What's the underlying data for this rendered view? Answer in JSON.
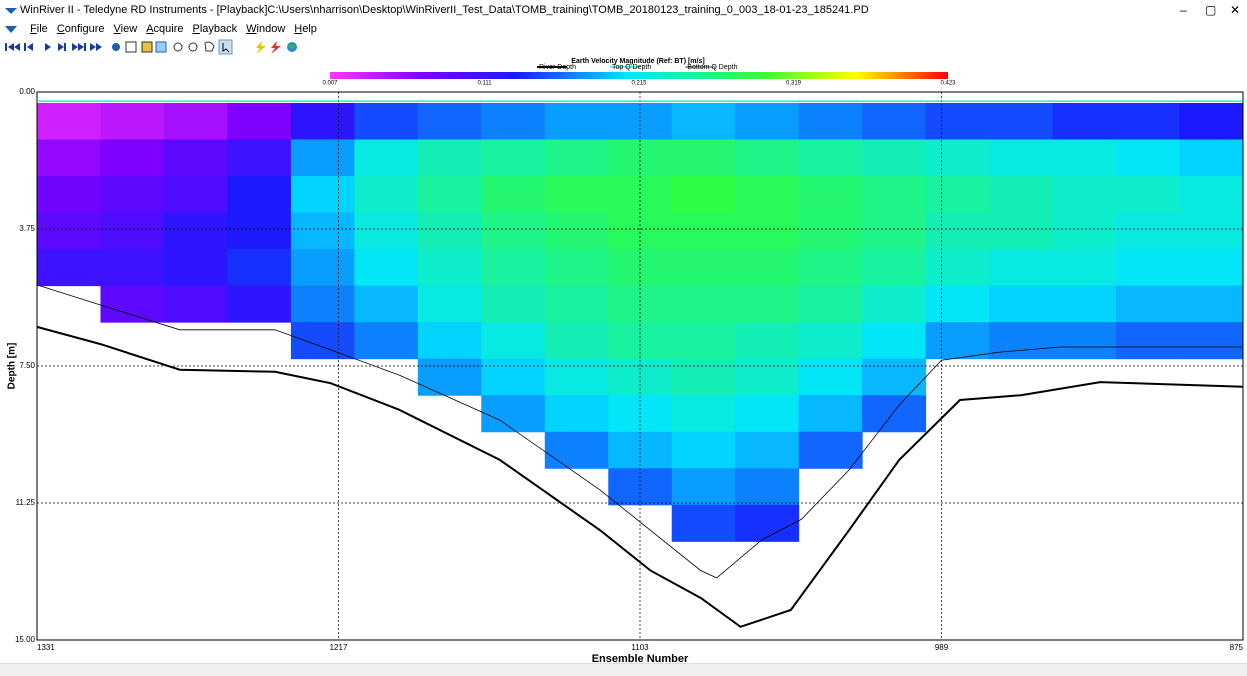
{
  "window": {
    "title": "WinRiver II - Teledyne RD Instruments - [Playback]C:\\Users\\nharrison\\Desktop\\WinRiverII_Test_Data\\TOMB_training\\TOMB_20180123_training_0_003_18-01-23_185241.PD",
    "controls": [
      "–",
      "▢",
      "✕"
    ]
  },
  "menu": [
    "File",
    "Configure",
    "View",
    "Acquire",
    "Playback",
    "Window",
    "Help"
  ],
  "chart_data": {
    "type": "heatmap",
    "title": "Earth Velocity Magnitude (Ref: BT) [m/s]",
    "x_label": "Ensemble Number",
    "y_label": "Depth [m]",
    "xlim": [
      1331,
      875
    ],
    "xticks": [
      1331,
      1217,
      1103,
      989,
      875
    ],
    "ylim": [
      0,
      15
    ],
    "yticks": [
      {
        "value": 0,
        "label": "0.00"
      },
      3.75,
      {
        "value": 7.5,
        "label": "7.50"
      },
      11.25,
      {
        "value": 15,
        "label": "15.00"
      }
    ],
    "grid": true,
    "clim": [
      0.007,
      0.423
    ],
    "cticks": [
      0.007,
      0.111,
      0.215,
      0.319,
      0.423
    ],
    "heatmap": {
      "ensemble_bins": [
        1331,
        1307,
        1283,
        1259,
        1235,
        1211,
        1187,
        1163,
        1139,
        1115,
        1091,
        1067,
        1043,
        1019,
        995,
        971,
        947,
        923,
        899,
        875
      ],
      "depth_bins": [
        0.3,
        1.3,
        2.3,
        3.3,
        4.3,
        5.3,
        6.3,
        7.3,
        8.3,
        9.3,
        10.3,
        11.3,
        12.3,
        13.3
      ],
      "values": [
        [
          0.03,
          0.06,
          0.08,
          0.09,
          0.11,
          null,
          null,
          null,
          null,
          null,
          null,
          null,
          null
        ],
        [
          0.04,
          0.07,
          0.09,
          0.1,
          0.11,
          0.09,
          null,
          null,
          null,
          null,
          null,
          null,
          null
        ],
        [
          0.05,
          0.09,
          0.1,
          0.12,
          0.12,
          0.1,
          null,
          null,
          null,
          null,
          null,
          null,
          null
        ],
        [
          0.07,
          0.11,
          0.13,
          0.13,
          0.14,
          0.12,
          null,
          null,
          null,
          null,
          null,
          null,
          null
        ],
        [
          0.12,
          0.18,
          0.2,
          0.19,
          0.18,
          0.17,
          0.15,
          null,
          null,
          null,
          null,
          null,
          null
        ],
        [
          0.15,
          0.22,
          0.23,
          0.22,
          0.21,
          0.19,
          0.17,
          null,
          null,
          null,
          null,
          null,
          null
        ],
        [
          0.16,
          0.24,
          0.25,
          0.24,
          0.23,
          0.22,
          0.2,
          0.18,
          null,
          null,
          null,
          null,
          null
        ],
        [
          0.17,
          0.25,
          0.27,
          0.26,
          0.25,
          0.24,
          0.22,
          0.2,
          0.18,
          null,
          null,
          null,
          null
        ],
        [
          0.18,
          0.26,
          0.28,
          0.27,
          0.26,
          0.25,
          0.24,
          0.22,
          0.2,
          0.17,
          null,
          null,
          null
        ],
        [
          0.18,
          0.27,
          0.28,
          0.28,
          0.27,
          0.26,
          0.25,
          0.23,
          0.21,
          0.19,
          0.16,
          null,
          null
        ],
        [
          0.19,
          0.27,
          0.29,
          0.28,
          0.27,
          0.26,
          0.25,
          0.24,
          0.22,
          0.2,
          0.18,
          0.15,
          null
        ],
        [
          0.18,
          0.26,
          0.28,
          0.28,
          0.27,
          0.26,
          0.24,
          0.23,
          0.21,
          0.19,
          0.17,
          0.14,
          null
        ],
        [
          0.17,
          0.25,
          0.27,
          0.27,
          0.26,
          0.25,
          0.23,
          0.21,
          0.19,
          0.16,
          null,
          null,
          null
        ],
        [
          0.16,
          0.24,
          0.26,
          0.26,
          0.25,
          0.23,
          0.21,
          0.19,
          0.16,
          null,
          null,
          null,
          null
        ],
        [
          0.15,
          0.23,
          0.25,
          0.24,
          0.23,
          0.21,
          0.18,
          null,
          null,
          null,
          null,
          null,
          null
        ],
        [
          0.15,
          0.22,
          0.24,
          0.24,
          0.22,
          0.2,
          0.17,
          null,
          null,
          null,
          null,
          null,
          null
        ],
        [
          0.14,
          0.22,
          0.23,
          0.23,
          0.22,
          0.2,
          0.17,
          null,
          null,
          null,
          null,
          null,
          null
        ],
        [
          0.14,
          0.21,
          0.23,
          0.22,
          0.21,
          0.19,
          0.16,
          null,
          null,
          null,
          null,
          null,
          null
        ],
        [
          0.13,
          0.2,
          0.22,
          0.22,
          0.21,
          0.19,
          0.16,
          null,
          null,
          null,
          null,
          null,
          null
        ]
      ]
    },
    "series": [
      {
        "name": "River Depth",
        "color": "#000000",
        "x": [
          1331,
          1307,
          1277,
          1241,
          1220,
          1194,
          1156,
          1118,
          1099,
          1080,
          1065,
          1046,
          1024,
          1005,
          982,
          959,
          929,
          875
        ],
        "values": [
          6.43,
          6.9,
          7.6,
          7.66,
          7.97,
          8.7,
          10.07,
          12.0,
          13.1,
          13.85,
          14.64,
          14.18,
          12.0,
          10.07,
          8.43,
          8.3,
          7.94,
          8.07
        ]
      },
      {
        "name": "Top Q Depth",
        "color": "#00e5c0",
        "x": [
          1331,
          875
        ],
        "values": [
          0.25,
          0.25
        ]
      },
      {
        "name": "Bottom Q Depth",
        "color": "#000000",
        "x": [
          1331,
          1307,
          1277,
          1241,
          1220,
          1194,
          1156,
          1118,
          1099,
          1080,
          1074,
          1057,
          1042,
          1024,
          1005,
          989,
          967,
          944,
          875
        ],
        "values": [
          5.28,
          5.83,
          6.51,
          6.51,
          7.06,
          7.75,
          8.98,
          10.9,
          12.0,
          13.1,
          13.3,
          12.26,
          11.7,
          10.35,
          8.57,
          7.34,
          7.12,
          6.98,
          6.98
        ]
      }
    ]
  }
}
